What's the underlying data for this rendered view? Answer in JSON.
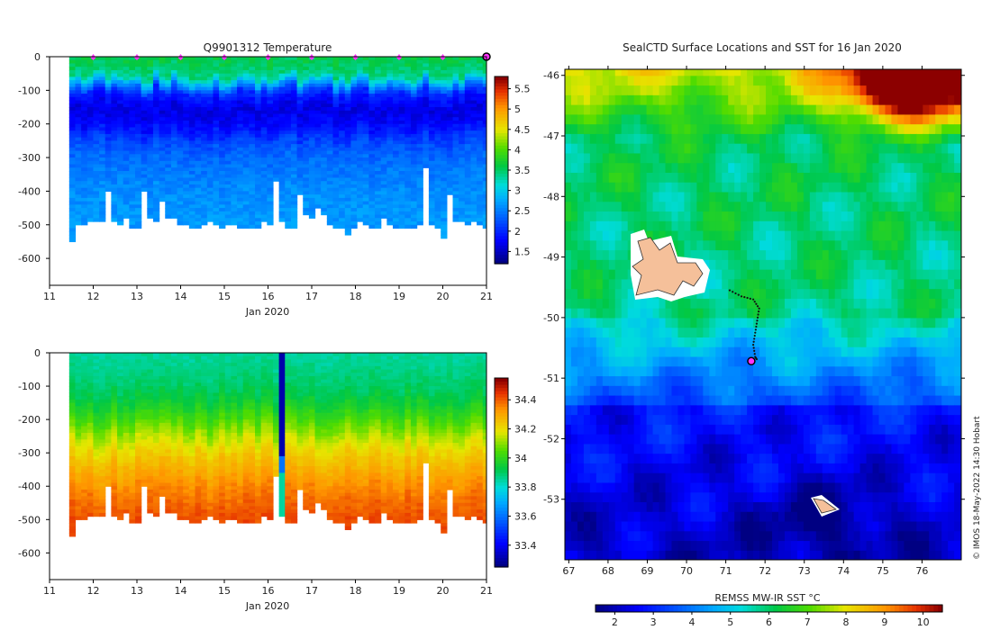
{
  "chart_data": [
    {
      "type": "heatmap",
      "title": "Q9901312  Temperature",
      "xlabel": "Jan 2020",
      "ylabel": "",
      "xlim": [
        11,
        21
      ],
      "ylim": [
        -680,
        0
      ],
      "x_ticks": [
        "11",
        "12",
        "13",
        "14",
        "15",
        "16",
        "17",
        "18",
        "19",
        "20",
        "21"
      ],
      "y_ticks": [
        "0",
        "-100",
        "-200",
        "-300",
        "-400",
        "-500",
        "-600"
      ],
      "colorbar_ticks": [
        "5.5",
        "5",
        "4.5",
        "4",
        "3.5",
        "3",
        "2.5",
        "2",
        "1.5"
      ],
      "colorbar_range": [
        1.2,
        5.8
      ],
      "surface_markers_day": [
        12,
        13,
        14,
        15,
        16,
        17,
        18,
        19,
        20
      ],
      "current_position_day": 21,
      "profile_start_day": 11.45,
      "profile_end_day": 21.05,
      "profile_max_depth": [
        -545,
        -495,
        -500,
        -490,
        -490,
        -490,
        -400,
        -490,
        -495,
        -480,
        -510,
        -510,
        -400,
        -480,
        -485,
        -430,
        -475,
        -480,
        -500,
        -500,
        -510,
        -510,
        -495,
        -490,
        -500,
        -505,
        -500,
        -500,
        -505,
        -505,
        -505,
        -505,
        -490,
        -500,
        -370,
        -490,
        -505,
        -510,
        -410,
        -470,
        -480,
        -450,
        -470,
        -495,
        -505,
        -505,
        -525,
        -505,
        -490,
        -500,
        -510,
        -505,
        -480,
        -500,
        -510,
        -505,
        -505,
        -505,
        -500,
        -330,
        -500,
        -510,
        -540,
        -410,
        -490,
        -490,
        -495,
        -490,
        -500,
        -505
      ],
      "temperature_profile": {
        "depth": [
          0,
          -50,
          -100,
          -150,
          -200,
          -250,
          -300,
          -400,
          -550
        ],
        "temp": [
          3.6,
          3.4,
          2.0,
          1.6,
          1.8,
          2.2,
          2.4,
          2.6,
          2.7
        ]
      }
    },
    {
      "type": "heatmap",
      "title": "",
      "xlabel": "Jan 2020",
      "ylabel": "",
      "xlim": [
        11,
        21
      ],
      "ylim": [
        -680,
        0
      ],
      "x_ticks": [
        "11",
        "12",
        "13",
        "14",
        "15",
        "16",
        "17",
        "18",
        "19",
        "20",
        "21"
      ],
      "y_ticks": [
        "0",
        "-100",
        "-200",
        "-300",
        "-400",
        "-500",
        "-600"
      ],
      "colorbar_ticks": [
        "34.4",
        "34.2",
        "34",
        "33.8",
        "33.6",
        "33.4"
      ],
      "colorbar_range": [
        33.25,
        34.55
      ],
      "salinity_profile": {
        "depth": [
          0,
          -100,
          -150,
          -200,
          -250,
          -300,
          -350,
          -400,
          -450,
          -500,
          -550
        ],
        "sal": [
          33.85,
          33.9,
          33.96,
          34.05,
          34.15,
          34.24,
          34.3,
          34.36,
          34.4,
          34.43,
          34.45
        ]
      },
      "anomaly_day": [
        16.2,
        16.45
      ]
    },
    {
      "type": "heatmap",
      "title": "SealCTD Surface Locations and SST for 16 Jan 2020",
      "xlabel": "",
      "ylabel": "",
      "xlim": [
        66.9,
        77.0
      ],
      "ylim": [
        -54.0,
        -45.9
      ],
      "x_ticks": [
        "67",
        "68",
        "69",
        "70",
        "71",
        "72",
        "73",
        "74",
        "75",
        "76"
      ],
      "y_ticks": [
        "-46",
        "-47",
        "-48",
        "-49",
        "-50",
        "-51",
        "-52",
        "-53"
      ],
      "colorbar_label": "REMSS MW-IR SST °C",
      "colorbar_ticks": [
        "2",
        "3",
        "4",
        "5",
        "6",
        "7",
        "8",
        "9",
        "10"
      ],
      "colorbar_range": [
        1.5,
        10.5
      ],
      "track_lon": [
        71.1,
        71.4,
        71.7,
        71.85,
        71.8,
        71.75,
        71.7,
        71.75,
        71.8
      ],
      "track_lat": [
        -49.55,
        -49.65,
        -49.7,
        -49.85,
        -50.05,
        -50.25,
        -50.45,
        -50.65,
        -50.7
      ],
      "current_position": [
        71.65,
        -50.72
      ]
    }
  ],
  "credit": "© IMOS 18-May-2022 14:30 Hobart",
  "colors": {
    "marker": "#ff33ff",
    "land": "#f5c09a",
    "track": "#111111"
  }
}
